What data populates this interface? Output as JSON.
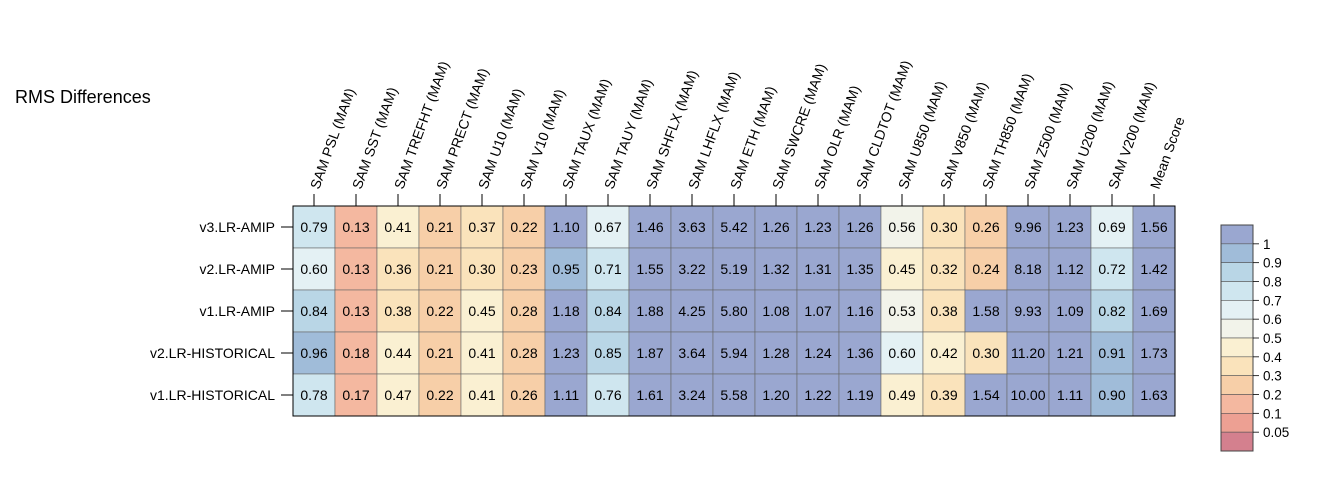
{
  "chart_data": {
    "type": "heatmap",
    "title": "RMS Differences",
    "columns": [
      "SAM PSL (MAM)",
      "SAM SST (MAM)",
      "SAM TREFHT (MAM)",
      "SAM PRECT (MAM)",
      "SAM U10 (MAM)",
      "SAM V10 (MAM)",
      "SAM TAUX (MAM)",
      "SAM TAUY (MAM)",
      "SAM SHFLX (MAM)",
      "SAM LHFLX (MAM)",
      "SAM ETH (MAM)",
      "SAM SWCRE (MAM)",
      "SAM OLR (MAM)",
      "SAM CLDTOT (MAM)",
      "SAM U850 (MAM)",
      "SAM V850 (MAM)",
      "SAM TH850 (MAM)",
      "SAM Z500 (MAM)",
      "SAM U200 (MAM)",
      "SAM V200 (MAM)",
      "Mean Score"
    ],
    "rows": [
      "v3.LR-AMIP",
      "v2.LR-AMIP",
      "v1.LR-AMIP",
      "v2.LR-HISTORICAL",
      "v1.LR-HISTORICAL"
    ],
    "values": [
      [
        0.79,
        0.13,
        0.41,
        0.21,
        0.37,
        0.22,
        1.1,
        0.67,
        1.46,
        3.63,
        5.42,
        1.26,
        1.23,
        1.26,
        0.56,
        0.3,
        0.26,
        9.96,
        1.23,
        0.69,
        1.56
      ],
      [
        0.6,
        0.13,
        0.36,
        0.21,
        0.3,
        0.23,
        0.95,
        0.71,
        1.55,
        3.22,
        5.19,
        1.32,
        1.31,
        1.35,
        0.45,
        0.32,
        0.24,
        8.18,
        1.12,
        0.72,
        1.42
      ],
      [
        0.84,
        0.13,
        0.38,
        0.22,
        0.45,
        0.28,
        1.18,
        0.84,
        1.88,
        4.25,
        5.8,
        1.08,
        1.07,
        1.16,
        0.53,
        0.38,
        1.58,
        9.93,
        1.09,
        0.82,
        1.69
      ],
      [
        0.96,
        0.18,
        0.44,
        0.21,
        0.41,
        0.28,
        1.23,
        0.85,
        1.87,
        3.64,
        5.94,
        1.28,
        1.24,
        1.36,
        0.6,
        0.42,
        0.3,
        11.2,
        1.21,
        0.91,
        1.73
      ],
      [
        0.78,
        0.17,
        0.47,
        0.22,
        0.41,
        0.26,
        1.11,
        0.76,
        1.61,
        3.24,
        5.58,
        1.2,
        1.22,
        1.19,
        0.49,
        0.39,
        1.54,
        10.0,
        1.11,
        0.9,
        1.63
      ]
    ],
    "value_labels": [
      [
        "0.79",
        "0.13",
        "0.41",
        "0.21",
        "0.37",
        "0.22",
        "1.10",
        "0.67",
        "1.46",
        "3.63",
        "5.42",
        "1.26",
        "1.23",
        "1.26",
        "0.56",
        "0.30",
        "0.26",
        "9.96",
        "1.23",
        "0.69",
        "1.56"
      ],
      [
        "0.60",
        "0.13",
        "0.36",
        "0.21",
        "0.30",
        "0.23",
        "0.95",
        "0.71",
        "1.55",
        "3.22",
        "5.19",
        "1.32",
        "1.31",
        "1.35",
        "0.45",
        "0.32",
        "0.24",
        "8.18",
        "1.12",
        "0.72",
        "1.42"
      ],
      [
        "0.84",
        "0.13",
        "0.38",
        "0.22",
        "0.45",
        "0.28",
        "1.18",
        "0.84",
        "1.88",
        "4.25",
        "5.80",
        "1.08",
        "1.07",
        "1.16",
        "0.53",
        "0.38",
        "1.58",
        "9.93",
        "1.09",
        "0.82",
        "1.69"
      ],
      [
        "0.96",
        "0.18",
        "0.44",
        "0.21",
        "0.41",
        "0.28",
        "1.23",
        "0.85",
        "1.87",
        "3.64",
        "5.94",
        "1.28",
        "1.24",
        "1.36",
        "0.60",
        "0.42",
        "0.30",
        "11.20",
        "1.21",
        "0.91",
        "1.73"
      ],
      [
        "0.78",
        "0.17",
        "0.47",
        "0.22",
        "0.41",
        "0.26",
        "1.11",
        "0.76",
        "1.61",
        "3.24",
        "5.58",
        "1.20",
        "1.22",
        "1.19",
        "0.49",
        "0.39",
        "1.54",
        "10.00",
        "1.11",
        "0.90",
        "1.63"
      ]
    ],
    "legend": {
      "placement": "right",
      "breaks": [
        0.05,
        0.1,
        0.2,
        0.3,
        0.4,
        0.5,
        0.6,
        0.7,
        0.8,
        0.9,
        1
      ],
      "labels": [
        "0.05",
        "0.1",
        "0.2",
        "0.3",
        "0.4",
        "0.5",
        "0.6",
        "0.7",
        "0.8",
        "0.9",
        "1"
      ],
      "colors": [
        "#d4808e",
        "#eda093",
        "#f4b8a0",
        "#f7cfa8",
        "#fae3bb",
        "#faf0d2",
        "#f2f3ea",
        "#e4f1f4",
        "#cfe6ef",
        "#b9d6e6",
        "#a0bcd9",
        "#9aa7d0"
      ],
      "color_ranges": [
        [
          null,
          0.05
        ],
        [
          0.05,
          0.1
        ],
        [
          0.1,
          0.2
        ],
        [
          0.2,
          0.3
        ],
        [
          0.3,
          0.4
        ],
        [
          0.4,
          0.5
        ],
        [
          0.5,
          0.6
        ],
        [
          0.6,
          0.7
        ],
        [
          0.7,
          0.8
        ],
        [
          0.8,
          0.9
        ],
        [
          0.9,
          1
        ],
        [
          1,
          null
        ]
      ]
    }
  }
}
